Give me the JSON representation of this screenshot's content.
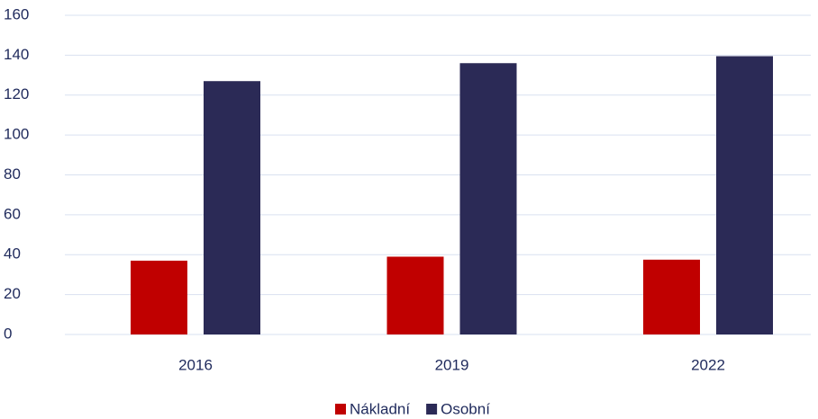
{
  "chart_data": {
    "type": "bar",
    "categories": [
      "2016",
      "2019",
      "2022"
    ],
    "series": [
      {
        "name": "Nákladní",
        "color": "#c00000",
        "values": [
          37,
          39,
          37.5
        ]
      },
      {
        "name": "Osobní",
        "color": "#2b2a56",
        "values": [
          127,
          136,
          139.5
        ]
      }
    ],
    "ylim": [
      0,
      160
    ],
    "yticks": [
      0,
      20,
      40,
      60,
      80,
      100,
      120,
      140,
      160
    ],
    "grid": true,
    "legend": "bottom"
  }
}
